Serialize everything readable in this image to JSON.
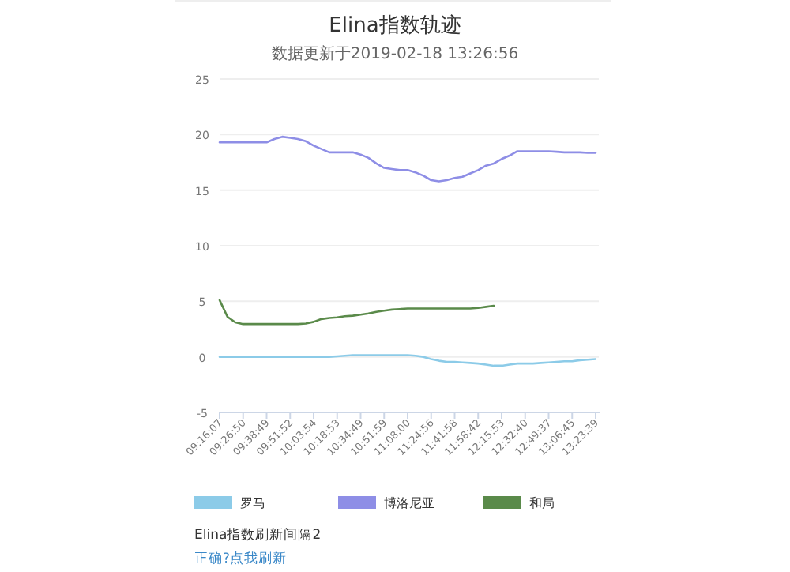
{
  "chart_data": {
    "type": "line",
    "title": "Elina指数轨迹",
    "subtitle": "数据更新于2019-02-18 13:26:56",
    "categories": [
      "09:16:07",
      null,
      null,
      "09:26:50",
      null,
      null,
      "09:38:49",
      null,
      null,
      "09:51:52",
      null,
      null,
      "10:03:54",
      null,
      null,
      "10:18:53",
      null,
      null,
      "10:34:49",
      null,
      null,
      "10:51:59",
      null,
      null,
      "11:08:00",
      null,
      null,
      "11:24:56",
      null,
      null,
      "11:41:58",
      null,
      null,
      "11:58:42",
      null,
      null,
      "12:15:53",
      null,
      null,
      "12:32:40",
      null,
      null,
      "12:49:37",
      null,
      null,
      "13:06:45",
      null,
      null,
      "13:23:39"
    ],
    "series": [
      {
        "name": "罗马",
        "color": "#8ccbe8",
        "values": [
          0,
          0,
          0,
          0,
          0,
          0,
          0,
          0,
          0,
          0,
          0,
          0,
          0,
          0,
          0,
          0.05,
          0.1,
          0.15,
          0.15,
          0.15,
          0.15,
          0.15,
          0.15,
          0.15,
          0.15,
          0.1,
          0,
          -0.2,
          -0.35,
          -0.45,
          -0.45,
          -0.5,
          -0.55,
          -0.6,
          -0.7,
          -0.8,
          -0.8,
          -0.7,
          -0.6,
          -0.6,
          -0.6,
          -0.55,
          -0.5,
          -0.45,
          -0.4,
          -0.4,
          -0.3,
          -0.25,
          -0.2
        ]
      },
      {
        "name": "博洛尼亚",
        "color": "#8e8ee6",
        "values": [
          19.3,
          19.3,
          19.3,
          19.3,
          19.3,
          19.3,
          19.3,
          19.6,
          19.8,
          19.7,
          19.6,
          19.4,
          19.0,
          18.7,
          18.4,
          18.4,
          18.4,
          18.4,
          18.2,
          17.9,
          17.4,
          17.0,
          16.9,
          16.8,
          16.8,
          16.6,
          16.3,
          15.9,
          15.8,
          15.9,
          16.1,
          16.2,
          16.5,
          16.8,
          17.2,
          17.4,
          17.8,
          18.1,
          18.5,
          18.5,
          18.5,
          18.5,
          18.5,
          18.45,
          18.4,
          18.4,
          18.4,
          18.35,
          18.35
        ]
      },
      {
        "name": "和局",
        "color": "#5a8a4a",
        "values": [
          5.1,
          3.6,
          3.1,
          2.95,
          2.95,
          2.95,
          2.95,
          2.95,
          2.95,
          2.95,
          2.95,
          3.0,
          3.15,
          3.4,
          3.5,
          3.55,
          3.65,
          3.7,
          3.8,
          3.9,
          4.05,
          4.15,
          4.25,
          4.3,
          4.35,
          4.35,
          4.35,
          4.35,
          4.35,
          4.35,
          4.35,
          4.35,
          4.35,
          4.4,
          4.5,
          4.6,
          null,
          null,
          null,
          null,
          null,
          null,
          null,
          null,
          null,
          null,
          null,
          null,
          null
        ]
      }
    ],
    "ylim": [
      -5,
      25
    ],
    "yticks": [
      -5,
      0,
      5,
      10,
      15,
      20,
      25
    ],
    "grid": "y",
    "legend": "bottom",
    "annotations": [
      "Elina指数刷新间隔2",
      "正确?点我刷新"
    ]
  }
}
